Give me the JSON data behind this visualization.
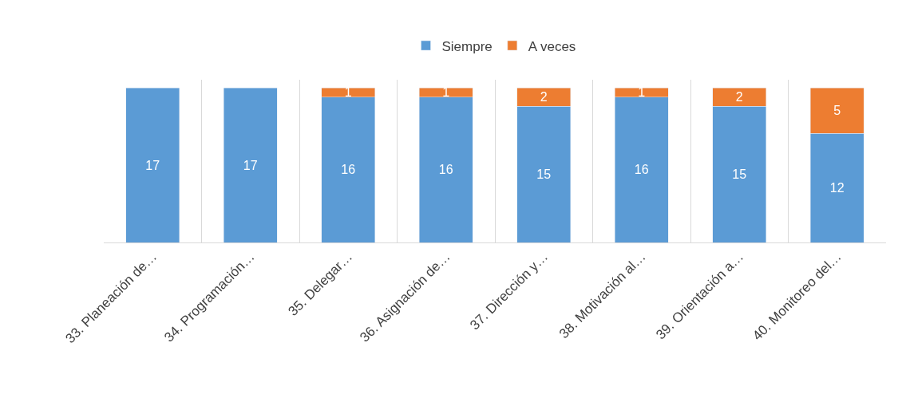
{
  "chart_data": {
    "type": "bar",
    "stacked": true,
    "data_labels": true,
    "grid": "x",
    "legend": "top",
    "categories": [
      "33. Planeación de…",
      "34. Programación…",
      "35. Delegar…",
      "36. Asignación de…",
      "37. Dirección y…",
      "38. Motivación al…",
      "39. Orientación a…",
      "40. Monitoreo del…"
    ],
    "series": [
      {
        "name": "Siempre",
        "color": "#5b9bd5",
        "values": [
          17,
          17,
          16,
          16,
          15,
          16,
          15,
          12
        ]
      },
      {
        "name": "A veces",
        "color": "#ed7d31",
        "values": [
          null,
          null,
          1,
          1,
          2,
          1,
          2,
          5
        ]
      }
    ]
  }
}
